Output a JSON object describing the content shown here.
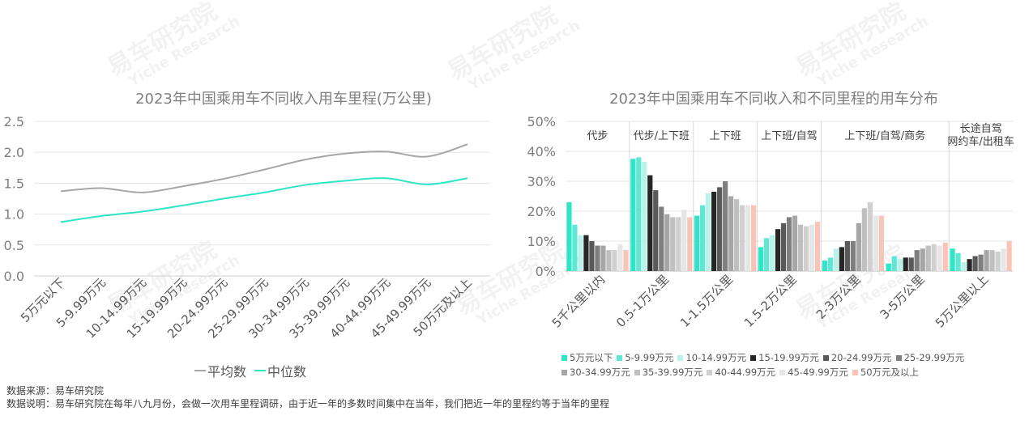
{
  "colors": {
    "avg": "#a6a6a6",
    "median": "#2ee5c6",
    "grid": "#e6e6e6",
    "band_divider": "#d9d9d9",
    "income_series": [
      "#2ee5c6",
      "#5ee8d3",
      "#b8f2e8",
      "#262626",
      "#595959",
      "#7f7f7f",
      "#a6a6a6",
      "#bfbfbf",
      "#d0d0d0",
      "#e6e6e6",
      "#f8c4b8"
    ]
  },
  "watermark": {
    "cn": "易车研究院",
    "en": "Yiche Research"
  },
  "footer": {
    "source": "数据来源：易车研究院",
    "note": "数据说明：易车研究院在每年八九月份，会做一次用车里程调研，由于近一年的多数时间集中在当年，我们把近一年的里程约等于当年的里程"
  },
  "chart_data": [
    {
      "type": "line",
      "title": "2023年中国乘用车不同收入用车里程(万公里)",
      "categories": [
        "5万元以下",
        "5-9.99万元",
        "10-14.99万元",
        "15-19.99万元",
        "20-24.99万元",
        "25-29.99万元",
        "30-34.99万元",
        "35-39.99万元",
        "40-44.99万元",
        "45-49.99万元",
        "50万元及以上"
      ],
      "series": [
        {
          "name": "平均数",
          "values": [
            1.37,
            1.42,
            1.35,
            1.45,
            1.57,
            1.72,
            1.88,
            1.98,
            2.01,
            1.93,
            2.13
          ]
        },
        {
          "name": "中位数",
          "values": [
            0.87,
            0.97,
            1.04,
            1.14,
            1.25,
            1.35,
            1.47,
            1.54,
            1.58,
            1.48,
            1.58
          ]
        }
      ],
      "yticks": [
        "0.0",
        "0.5",
        "1.0",
        "1.5",
        "2.0",
        "2.5"
      ],
      "ylim": [
        0,
        2.5
      ],
      "grid": true,
      "legend": "bottom"
    },
    {
      "type": "bar",
      "title": "2023年中国乘用车不同收入和不同里程的用车分布",
      "categories": [
        "5千公里以内",
        "0.5-1万公里",
        "1-1.5万公里",
        "1.5-2万公里",
        "2-3万公里",
        "3-5万公里",
        "5万公里以上"
      ],
      "bands": [
        "代步",
        "代步/上下班",
        "上下班",
        "上下班/自驾",
        "上下班/自驾/商务",
        "长途自驾\n网约车/出租车"
      ],
      "series": [
        {
          "name": "5万元以下",
          "values": [
            23.0,
            37.5,
            18.5,
            8.0,
            3.5,
            2.5,
            7.5
          ]
        },
        {
          "name": "5-9.99万元",
          "values": [
            15.5,
            38.0,
            22.0,
            11.0,
            4.5,
            5.0,
            6.0
          ]
        },
        {
          "name": "10-14.99万元",
          "values": [
            12.0,
            36.5,
            26.0,
            12.0,
            7.5,
            4.0,
            3.0
          ]
        },
        {
          "name": "15-19.99万元",
          "values": [
            12.0,
            32.0,
            26.5,
            14.0,
            8.0,
            4.5,
            4.0
          ]
        },
        {
          "name": "20-24.99万元",
          "values": [
            10.0,
            27.0,
            28.0,
            16.0,
            10.0,
            4.5,
            5.0
          ]
        },
        {
          "name": "25-29.99万元",
          "values": [
            8.5,
            21.5,
            30.0,
            18.0,
            10.0,
            7.0,
            5.5
          ]
        },
        {
          "name": "30-34.99万元",
          "values": [
            8.5,
            19.0,
            25.0,
            18.5,
            16.0,
            7.5,
            7.0
          ]
        },
        {
          "name": "35-39.99万元",
          "values": [
            7.0,
            18.0,
            24.0,
            15.5,
            21.0,
            8.5,
            7.0
          ]
        },
        {
          "name": "40-44.99万元",
          "values": [
            7.0,
            18.0,
            22.0,
            15.0,
            23.0,
            9.0,
            6.5
          ]
        },
        {
          "name": "45-49.99万元",
          "values": [
            9.0,
            20.5,
            22.0,
            15.5,
            18.5,
            8.5,
            7.5
          ]
        },
        {
          "name": "50万元及以上",
          "values": [
            7.0,
            18.0,
            22.0,
            16.5,
            18.5,
            9.5,
            10.0
          ]
        }
      ],
      "yticks": [
        "0%",
        "10%",
        "20%",
        "30%",
        "40%",
        "50%"
      ],
      "ylim": [
        0,
        50
      ],
      "legend": "bottom"
    }
  ]
}
